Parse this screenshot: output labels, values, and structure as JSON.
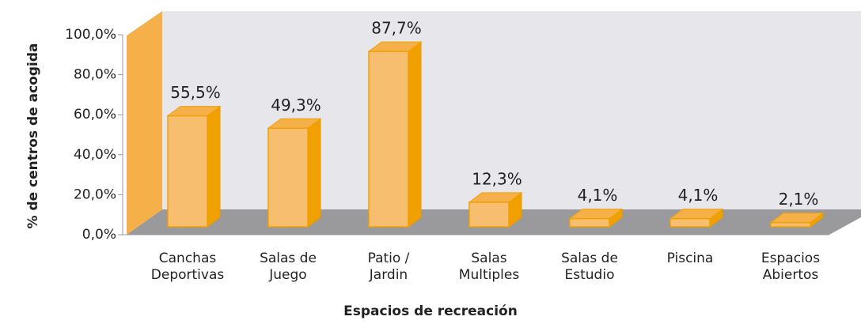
{
  "chart_data": {
    "type": "bar3d",
    "categories": [
      [
        "Canchas",
        "Deportivas"
      ],
      [
        "Salas de",
        "Juego"
      ],
      [
        "Patio /",
        "Jardin"
      ],
      [
        "Salas",
        "Multiples"
      ],
      [
        "Salas de",
        "Estudio"
      ],
      [
        "Piscina"
      ],
      [
        "Espacios",
        "Abiertos"
      ]
    ],
    "values": [
      55.5,
      49.3,
      87.7,
      12.3,
      4.1,
      4.1,
      2.1
    ],
    "value_labels": [
      "55,5%",
      "49,3%",
      "87,7%",
      "12,3%",
      "4,1%",
      "4,1%",
      "2,1%"
    ],
    "color": "#f6be6e",
    "ylim": [
      0,
      100
    ],
    "yticks": [
      {
        "value": 0,
        "label": "0,0%"
      },
      {
        "value": 20,
        "label": "20,0%"
      },
      {
        "value": 40,
        "label": "40,0%"
      },
      {
        "value": 60,
        "label": "60,0%"
      },
      {
        "value": 80,
        "label": "80,0%"
      },
      {
        "value": 100,
        "label": "100,0%"
      }
    ],
    "y_label": "% de centros de acogida",
    "x_label": "Espacios de recreación"
  }
}
